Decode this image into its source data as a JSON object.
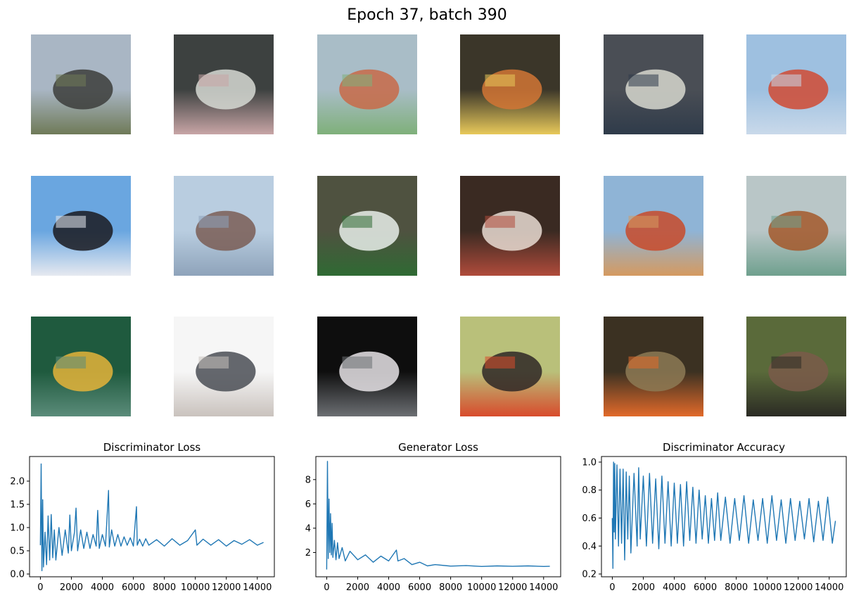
{
  "figure": {
    "suptitle": "Epoch 37, batch 390",
    "samples": {
      "rows": 3,
      "cols": 6,
      "tiles": [
        {
          "name": "sample-tile",
          "colors": [
            "#a9b6c4",
            "#3c3d3b",
            "#6f7a58"
          ]
        },
        {
          "name": "sample-tile",
          "colors": [
            "#3d4140",
            "#d6d9d3",
            "#c8a5a6"
          ]
        },
        {
          "name": "sample-tile",
          "colors": [
            "#a9bdc7",
            "#c86a48",
            "#7fb07a"
          ]
        },
        {
          "name": "sample-tile",
          "colors": [
            "#3b3629",
            "#d27535",
            "#e8c95a"
          ]
        },
        {
          "name": "sample-tile",
          "colors": [
            "#4a4e55",
            "#d7d8cf",
            "#2f3b4a"
          ]
        },
        {
          "name": "sample-tile",
          "colors": [
            "#9ec0e0",
            "#d04a32",
            "#c9d9ea"
          ]
        },
        {
          "name": "sample-tile",
          "colors": [
            "#6aa6e0",
            "#1a1a20",
            "#e6e9f0"
          ]
        },
        {
          "name": "sample-tile",
          "colors": [
            "#b9cde0",
            "#7a5d55",
            "#8ea3ba"
          ]
        },
        {
          "name": "sample-tile",
          "colors": [
            "#4f5240",
            "#e8eeea",
            "#2f6a33"
          ]
        },
        {
          "name": "sample-tile",
          "colors": [
            "#3a2a22",
            "#e9dcd2",
            "#b04b3b"
          ]
        },
        {
          "name": "sample-tile",
          "colors": [
            "#8fb4d6",
            "#c84a2a",
            "#d59a60"
          ]
        },
        {
          "name": "sample-tile",
          "colors": [
            "#b9c6c7",
            "#a3582a",
            "#6fa08e"
          ]
        },
        {
          "name": "sample-tile",
          "colors": [
            "#1f5a3e",
            "#e5b43a",
            "#5b8c7a"
          ]
        },
        {
          "name": "sample-tile",
          "colors": [
            "#f6f6f6",
            "#4a4e55",
            "#c9c2bd"
          ]
        },
        {
          "name": "sample-tile",
          "colors": [
            "#0e0e0e",
            "#e6e3e6",
            "#6c6f73"
          ]
        },
        {
          "name": "sample-tile",
          "colors": [
            "#b9c07a",
            "#2e2726",
            "#d84b2c"
          ]
        },
        {
          "name": "sample-tile",
          "colors": [
            "#3b3122",
            "#8d7a55",
            "#e26a2a"
          ]
        },
        {
          "name": "sample-tile",
          "colors": [
            "#5a6a3a",
            "#7a5a4a",
            "#2b2b24"
          ]
        }
      ]
    }
  },
  "chart_data": [
    {
      "type": "line",
      "title": "Discriminator Loss",
      "xlabel": "",
      "ylabel": "",
      "xlim": [
        -700,
        15100
      ],
      "ylim": [
        -0.06,
        2.53
      ],
      "xticks": [
        0,
        2000,
        4000,
        6000,
        8000,
        10000,
        12000,
        14000
      ],
      "xtick_labels": [
        "0",
        "2000",
        "4000",
        "6000",
        "8000",
        "10000",
        "12000",
        "14000"
      ],
      "yticks": [
        0.0,
        0.5,
        1.0,
        1.5,
        2.0
      ],
      "ytick_labels": [
        "0.0",
        "0.5",
        "1.0",
        "1.5",
        "2.0"
      ],
      "grid": false,
      "color": "#1f77b4",
      "series": [
        {
          "x": [
            0,
            50,
            100,
            150,
            200,
            300,
            400,
            500,
            600,
            700,
            800,
            900,
            1000,
            1200,
            1400,
            1600,
            1800,
            1900,
            2000,
            2200,
            2300,
            2400,
            2600,
            2800,
            3000,
            3200,
            3400,
            3600,
            3700,
            3800,
            4000,
            4200,
            4400,
            4450,
            4600,
            4800,
            5000,
            5200,
            5400,
            5600,
            5800,
            6000,
            6200,
            6250,
            6400,
            6600,
            6800,
            7000,
            7500,
            8000,
            8500,
            9000,
            9500,
            10000,
            10100,
            10500,
            11000,
            11500,
            12000,
            12500,
            13000,
            13500,
            14000,
            14400
          ],
          "y": [
            0.62,
            2.37,
            0.07,
            1.6,
            0.15,
            0.9,
            0.2,
            1.25,
            0.3,
            1.28,
            0.35,
            0.95,
            0.3,
            1.0,
            0.4,
            0.95,
            0.45,
            1.27,
            0.5,
            0.9,
            1.42,
            0.5,
            0.95,
            0.55,
            0.9,
            0.55,
            0.85,
            0.6,
            1.37,
            0.55,
            0.85,
            0.6,
            1.8,
            0.58,
            0.95,
            0.6,
            0.85,
            0.6,
            0.8,
            0.62,
            0.78,
            0.6,
            1.45,
            0.62,
            0.75,
            0.6,
            0.76,
            0.62,
            0.74,
            0.6,
            0.76,
            0.62,
            0.72,
            0.95,
            0.62,
            0.75,
            0.62,
            0.74,
            0.6,
            0.72,
            0.64,
            0.74,
            0.62,
            0.68
          ]
        }
      ]
    },
    {
      "type": "line",
      "title": "Generator Loss",
      "xlabel": "",
      "ylabel": "",
      "xlim": [
        -700,
        15100
      ],
      "ylim": [
        0.0,
        9.9
      ],
      "xticks": [
        0,
        2000,
        4000,
        6000,
        8000,
        10000,
        12000,
        14000
      ],
      "xtick_labels": [
        "0",
        "2000",
        "4000",
        "6000",
        "8000",
        "10000",
        "12000",
        "14000"
      ],
      "yticks": [
        2,
        4,
        6,
        8
      ],
      "ytick_labels": [
        "2",
        "4",
        "6",
        "8"
      ],
      "grid": false,
      "color": "#1f77b4",
      "series": [
        {
          "x": [
            0,
            50,
            100,
            150,
            200,
            250,
            300,
            350,
            400,
            500,
            600,
            700,
            800,
            1000,
            1200,
            1500,
            2000,
            2500,
            3000,
            3500,
            4000,
            4500,
            4600,
            5000,
            5500,
            6000,
            6500,
            7000,
            8000,
            9000,
            10000,
            11000,
            12000,
            13000,
            14000,
            14400
          ],
          "y": [
            0.6,
            9.5,
            1.5,
            6.4,
            2.0,
            5.2,
            1.8,
            4.4,
            1.6,
            3.0,
            1.4,
            2.8,
            1.5,
            2.4,
            1.3,
            2.1,
            1.4,
            1.8,
            1.2,
            1.7,
            1.3,
            2.2,
            1.3,
            1.5,
            1.0,
            1.2,
            0.9,
            1.0,
            0.88,
            0.92,
            0.85,
            0.9,
            0.86,
            0.9,
            0.85,
            0.86
          ]
        }
      ]
    },
    {
      "type": "line",
      "title": "Discriminator Accuracy",
      "xlabel": "",
      "ylabel": "",
      "xlim": [
        -700,
        15100
      ],
      "ylim": [
        0.18,
        1.04
      ],
      "xticks": [
        0,
        2000,
        4000,
        6000,
        8000,
        10000,
        12000,
        14000
      ],
      "xtick_labels": [
        "0",
        "2000",
        "4000",
        "6000",
        "8000",
        "10000",
        "12000",
        "14000"
      ],
      "yticks": [
        0.2,
        0.4,
        0.6,
        0.8,
        1.0
      ],
      "ytick_labels": [
        "0.2",
        "0.4",
        "0.6",
        "0.8",
        "1.0"
      ],
      "grid": false,
      "color": "#1f77b4",
      "series": [
        {
          "x": [
            0,
            40,
            80,
            120,
            160,
            200,
            300,
            400,
            500,
            600,
            700,
            800,
            900,
            1000,
            1100,
            1200,
            1400,
            1600,
            1700,
            1800,
            2000,
            2200,
            2400,
            2600,
            2800,
            3000,
            3200,
            3400,
            3600,
            3800,
            4000,
            4200,
            4400,
            4600,
            4800,
            5000,
            5200,
            5400,
            5600,
            5800,
            6000,
            6200,
            6400,
            6600,
            6800,
            7000,
            7300,
            7600,
            7900,
            8200,
            8500,
            8800,
            9100,
            9400,
            9700,
            10000,
            10300,
            10600,
            10900,
            11200,
            11500,
            11800,
            12100,
            12400,
            12700,
            13000,
            13300,
            13600,
            13900,
            14200,
            14400
          ],
          "y": [
            0.6,
            0.24,
            1.0,
            0.5,
            0.99,
            0.45,
            0.98,
            0.4,
            0.95,
            0.42,
            0.95,
            0.3,
            0.93,
            0.45,
            0.9,
            0.35,
            0.92,
            0.4,
            0.96,
            0.45,
            0.9,
            0.4,
            0.92,
            0.42,
            0.88,
            0.38,
            0.9,
            0.42,
            0.86,
            0.4,
            0.85,
            0.42,
            0.84,
            0.4,
            0.86,
            0.44,
            0.82,
            0.42,
            0.8,
            0.45,
            0.76,
            0.42,
            0.74,
            0.44,
            0.78,
            0.44,
            0.75,
            0.42,
            0.74,
            0.44,
            0.76,
            0.42,
            0.73,
            0.44,
            0.74,
            0.42,
            0.76,
            0.44,
            0.73,
            0.42,
            0.74,
            0.44,
            0.72,
            0.45,
            0.74,
            0.43,
            0.72,
            0.44,
            0.75,
            0.42,
            0.58
          ]
        }
      ]
    }
  ]
}
